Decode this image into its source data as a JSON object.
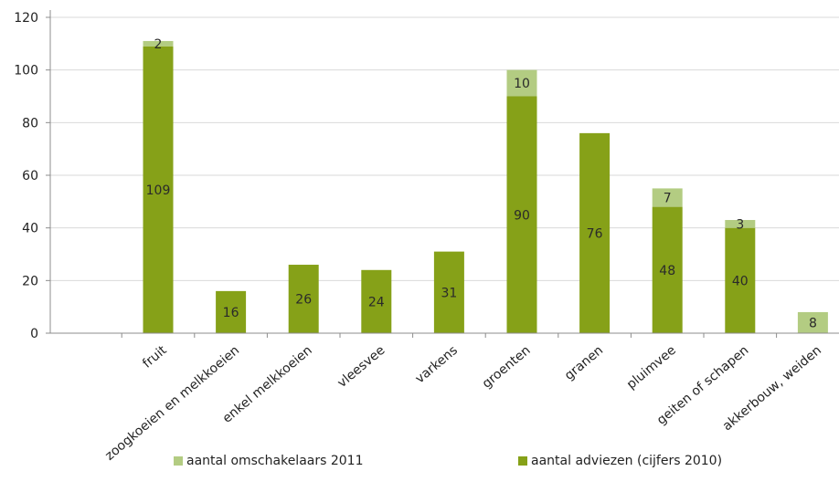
{
  "chart_data": {
    "type": "bar",
    "stacked": true,
    "categories": [
      "fruit",
      "zoogkoeien en melkkoeien",
      "enkel melkkoeien",
      "vleesvee",
      "varkens",
      "groenten",
      "granen",
      "pluimvee",
      "geiten  of schapen",
      "akkerbouw, weiden"
    ],
    "series": [
      {
        "name": "aantal adviezen (cijfers 2010)",
        "values": [
          109,
          16,
          26,
          24,
          31,
          90,
          76,
          48,
          40,
          0
        ],
        "color": "#86a118"
      },
      {
        "name": "aantal omschakelaars 2011",
        "values": [
          2,
          0,
          0,
          0,
          0,
          10,
          0,
          7,
          3,
          8
        ],
        "color": "#b3cc82"
      }
    ],
    "data_labels": {
      "adviezen": [
        "109",
        "16",
        "26",
        "24",
        "31",
        "90",
        "76",
        "48",
        "40",
        ""
      ],
      "omschakelaars": [
        "2",
        "",
        "",
        "",
        "",
        "10",
        "",
        "7",
        "3",
        "8"
      ]
    },
    "yticks": [
      "0",
      "20",
      "40",
      "60",
      "80",
      "100",
      "120"
    ],
    "ylim": [
      0,
      120
    ],
    "legend_position": "bottom",
    "grid": true
  },
  "legend": {
    "omschakelaars": "aantal omschakelaars 2011",
    "adviezen": "aantal adviezen (cijfers 2010)"
  }
}
